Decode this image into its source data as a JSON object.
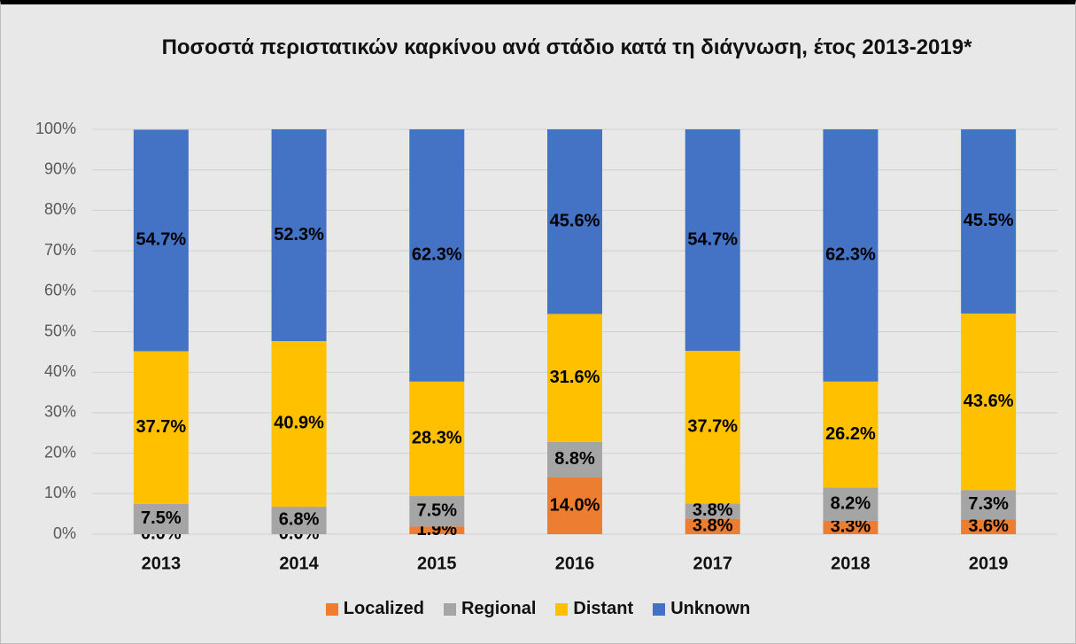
{
  "chart_data": {
    "type": "stacked_bar",
    "title": "Ποσοστά περιστατικών καρκίνου ανά στάδιο κατά τη διάγνωση, έτος 2013-2019*",
    "categories": [
      "2013",
      "2014",
      "2015",
      "2016",
      "2017",
      "2018",
      "2019"
    ],
    "series": [
      {
        "name": "Localized",
        "color": "#ed7d31",
        "values": [
          0.0,
          0.0,
          1.9,
          14.0,
          3.8,
          3.3,
          3.6
        ],
        "value_labels": [
          "0.0%",
          "0.0%",
          "1.9%",
          "14.0%",
          "3.8%",
          "3.3%",
          "3.6%"
        ]
      },
      {
        "name": "Regional",
        "color": "#a5a5a5",
        "values": [
          7.5,
          6.8,
          7.5,
          8.8,
          3.8,
          8.2,
          7.3
        ],
        "value_labels": [
          "7.5%",
          "6.8%",
          "7.5%",
          "8.8%",
          "3.8%",
          "8.2%",
          "7.3%"
        ]
      },
      {
        "name": "Distant",
        "color": "#ffc000",
        "values": [
          37.7,
          40.9,
          28.3,
          31.6,
          37.7,
          26.2,
          43.6
        ],
        "value_labels": [
          "37.7%",
          "40.9%",
          "28.3%",
          "31.6%",
          "37.7%",
          "26.2%",
          "43.6%"
        ]
      },
      {
        "name": "Unknown",
        "color": "#4472c4",
        "values": [
          54.7,
          52.3,
          62.3,
          45.6,
          54.7,
          62.3,
          45.5
        ],
        "value_labels": [
          "54.7%",
          "52.3%",
          "62.3%",
          "45.6%",
          "54.7%",
          "62.3%",
          "45.5%"
        ]
      }
    ],
    "ylim": [
      0,
      100
    ],
    "yticks": [
      {
        "value": 0,
        "label": "0%"
      },
      {
        "value": 10,
        "label": "10%"
      },
      {
        "value": 20,
        "label": "20%"
      },
      {
        "value": 30,
        "label": "30%"
      },
      {
        "value": 40,
        "label": "40%"
      },
      {
        "value": 50,
        "label": "50%"
      },
      {
        "value": 60,
        "label": "60%"
      },
      {
        "value": 70,
        "label": "70%"
      },
      {
        "value": 80,
        "label": "80%"
      },
      {
        "value": 90,
        "label": "90%"
      },
      {
        "value": 100,
        "label": "100%"
      }
    ],
    "grid": true,
    "legend": "bottom"
  }
}
